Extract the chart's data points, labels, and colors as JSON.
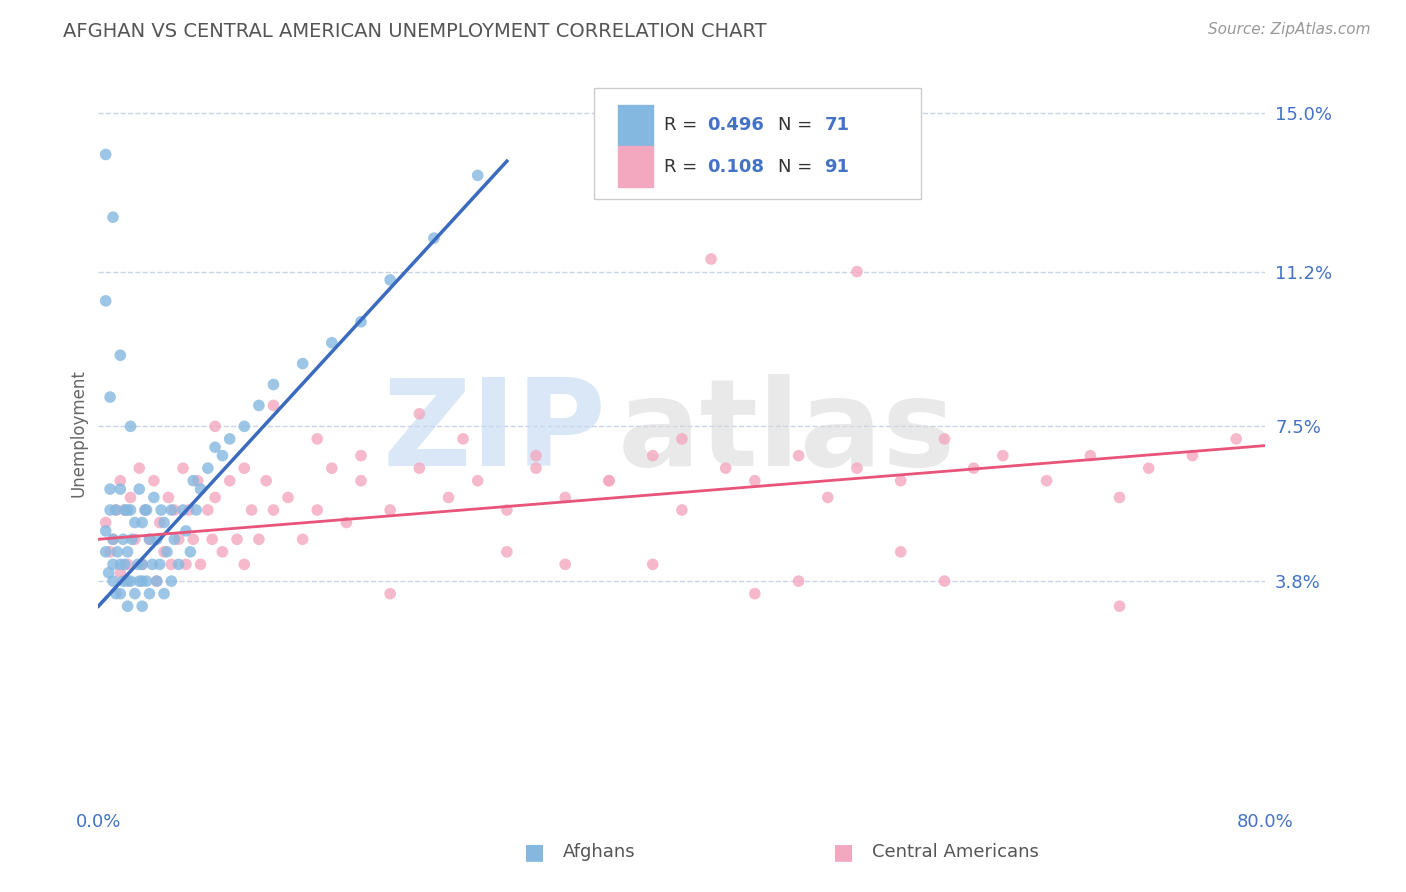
{
  "title": "AFGHAN VS CENTRAL AMERICAN UNEMPLOYMENT CORRELATION CHART",
  "source": "Source: ZipAtlas.com",
  "ylabel": "Unemployment",
  "xlim": [
    0.0,
    0.8
  ],
  "ylim": [
    -0.015,
    0.162
  ],
  "yticks": [
    0.038,
    0.075,
    0.112,
    0.15
  ],
  "ytick_labels": [
    "3.8%",
    "7.5%",
    "11.2%",
    "15.0%"
  ],
  "xticks": [
    0.0,
    0.8
  ],
  "xtick_labels": [
    "0.0%",
    "80.0%"
  ],
  "afghan_R": 0.496,
  "afghan_N": 71,
  "central_R": 0.108,
  "central_N": 91,
  "afghan_color": "#85b8e0",
  "central_color": "#f4a8c0",
  "afghan_line_color": "#3a6bbf",
  "central_line_color": "#e8547a",
  "background_color": "#ffffff",
  "grid_color": "#c8d4e8",
  "title_color": "#555555",
  "axis_label_color": "#666666",
  "tick_label_color": "#4472c4",
  "legend_text_color": "#333333",
  "legend_value_color": "#4472c4",
  "afghan_scatter_x": [
    0.005,
    0.005,
    0.007,
    0.008,
    0.008,
    0.01,
    0.01,
    0.01,
    0.012,
    0.012,
    0.013,
    0.015,
    0.015,
    0.015,
    0.017,
    0.017,
    0.018,
    0.018,
    0.02,
    0.02,
    0.02,
    0.02,
    0.022,
    0.022,
    0.023,
    0.025,
    0.025,
    0.027,
    0.028,
    0.028,
    0.03,
    0.03,
    0.03,
    0.03,
    0.032,
    0.033,
    0.033,
    0.035,
    0.035,
    0.037,
    0.038,
    0.04,
    0.04,
    0.042,
    0.043,
    0.045,
    0.045,
    0.047,
    0.05,
    0.05,
    0.052,
    0.055,
    0.058,
    0.06,
    0.063,
    0.065,
    0.067,
    0.07,
    0.075,
    0.08,
    0.085,
    0.09,
    0.1,
    0.11,
    0.12,
    0.14,
    0.16,
    0.18,
    0.2,
    0.23,
    0.26
  ],
  "afghan_scatter_y": [
    0.045,
    0.05,
    0.04,
    0.055,
    0.06,
    0.038,
    0.042,
    0.048,
    0.035,
    0.055,
    0.045,
    0.035,
    0.042,
    0.06,
    0.038,
    0.048,
    0.042,
    0.055,
    0.032,
    0.038,
    0.045,
    0.055,
    0.038,
    0.055,
    0.048,
    0.035,
    0.052,
    0.042,
    0.038,
    0.06,
    0.032,
    0.038,
    0.042,
    0.052,
    0.055,
    0.038,
    0.055,
    0.035,
    0.048,
    0.042,
    0.058,
    0.038,
    0.048,
    0.042,
    0.055,
    0.035,
    0.052,
    0.045,
    0.038,
    0.055,
    0.048,
    0.042,
    0.055,
    0.05,
    0.045,
    0.062,
    0.055,
    0.06,
    0.065,
    0.07,
    0.068,
    0.072,
    0.075,
    0.08,
    0.085,
    0.09,
    0.095,
    0.1,
    0.11,
    0.12,
    0.135
  ],
  "afghan_scatter_outliers_x": [
    0.01,
    0.005,
    0.015,
    0.008,
    0.022,
    0.005
  ],
  "afghan_scatter_outliers_y": [
    0.125,
    0.105,
    0.092,
    0.082,
    0.075,
    0.14
  ],
  "central_scatter_x": [
    0.005,
    0.008,
    0.01,
    0.012,
    0.015,
    0.015,
    0.018,
    0.02,
    0.022,
    0.025,
    0.028,
    0.03,
    0.032,
    0.035,
    0.038,
    0.04,
    0.042,
    0.045,
    0.048,
    0.05,
    0.052,
    0.055,
    0.058,
    0.06,
    0.062,
    0.065,
    0.068,
    0.07,
    0.075,
    0.078,
    0.08,
    0.085,
    0.09,
    0.095,
    0.1,
    0.105,
    0.11,
    0.115,
    0.12,
    0.13,
    0.14,
    0.15,
    0.16,
    0.17,
    0.18,
    0.2,
    0.22,
    0.24,
    0.26,
    0.28,
    0.3,
    0.32,
    0.35,
    0.38,
    0.4,
    0.43,
    0.45,
    0.48,
    0.5,
    0.52,
    0.55,
    0.58,
    0.6,
    0.62,
    0.65,
    0.68,
    0.7,
    0.72,
    0.75,
    0.78,
    0.08,
    0.1,
    0.12,
    0.15,
    0.18,
    0.22,
    0.25,
    0.3,
    0.35,
    0.4,
    0.28,
    0.38,
    0.48,
    0.55,
    0.2,
    0.32,
    0.45,
    0.58,
    0.7,
    0.42,
    0.52
  ],
  "central_scatter_y": [
    0.052,
    0.045,
    0.048,
    0.055,
    0.04,
    0.062,
    0.055,
    0.042,
    0.058,
    0.048,
    0.065,
    0.042,
    0.055,
    0.048,
    0.062,
    0.038,
    0.052,
    0.045,
    0.058,
    0.042,
    0.055,
    0.048,
    0.065,
    0.042,
    0.055,
    0.048,
    0.062,
    0.042,
    0.055,
    0.048,
    0.058,
    0.045,
    0.062,
    0.048,
    0.042,
    0.055,
    0.048,
    0.062,
    0.055,
    0.058,
    0.048,
    0.055,
    0.065,
    0.052,
    0.062,
    0.055,
    0.065,
    0.058,
    0.062,
    0.055,
    0.065,
    0.058,
    0.062,
    0.068,
    0.055,
    0.065,
    0.062,
    0.068,
    0.058,
    0.065,
    0.062,
    0.072,
    0.065,
    0.068,
    0.062,
    0.068,
    0.058,
    0.065,
    0.068,
    0.072,
    0.075,
    0.065,
    0.08,
    0.072,
    0.068,
    0.078,
    0.072,
    0.068,
    0.062,
    0.072,
    0.045,
    0.042,
    0.038,
    0.045,
    0.035,
    0.042,
    0.035,
    0.038,
    0.032,
    0.115,
    0.112
  ],
  "afghan_line_x": [
    0.0,
    0.28
  ],
  "afghan_line_y_start": 0.032,
  "afghan_line_slope": 0.38,
  "central_line_x": [
    0.0,
    0.8
  ],
  "central_line_y_start": 0.048,
  "central_line_slope": 0.028
}
